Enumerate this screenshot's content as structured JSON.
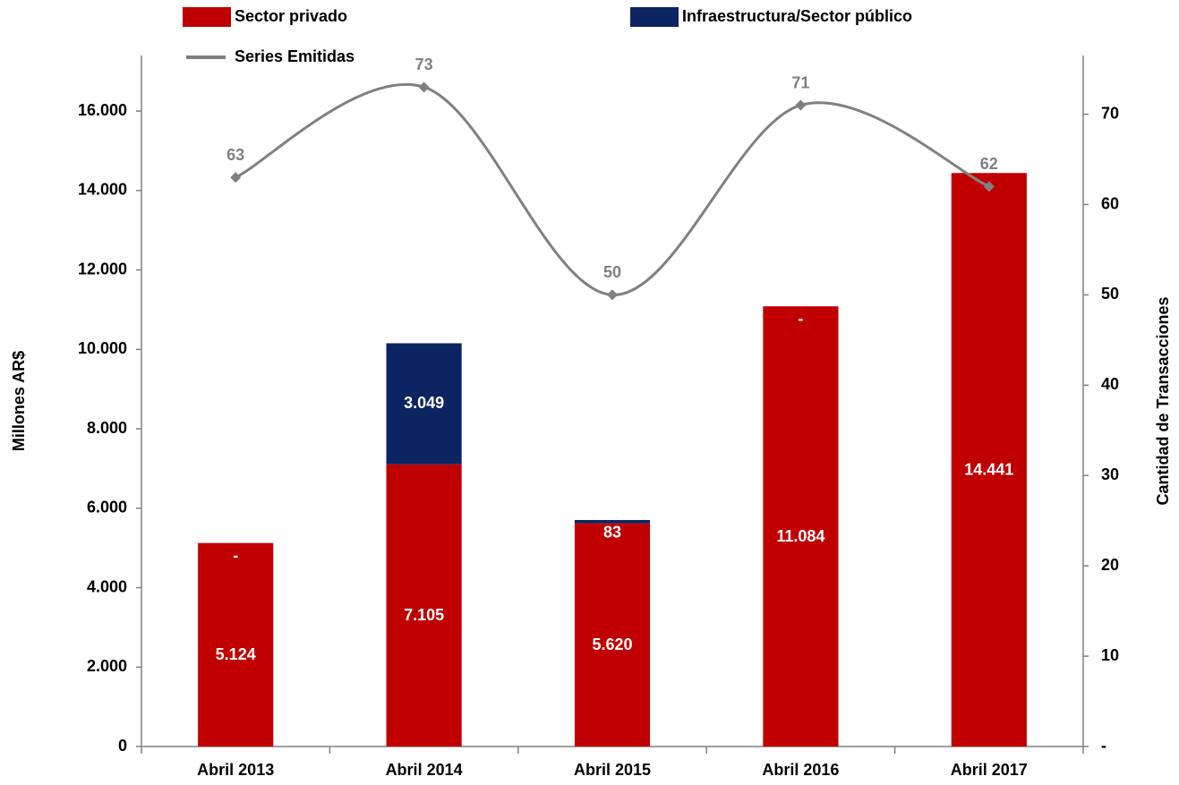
{
  "chart_data": {
    "type": "bar",
    "categories": [
      "Abril 2013",
      "Abril 2014",
      "Abril 2015",
      "Abril 2016",
      "Abril 2017"
    ],
    "series": [
      {
        "name": "Sector privado",
        "color": "#c00000",
        "values": [
          5124,
          7105,
          5620,
          11084,
          14441
        ],
        "value_labels": [
          "5.124",
          "7.105",
          "5.620",
          "11.084",
          "14.441"
        ]
      },
      {
        "name": "Infraestructura/Sector público",
        "color": "#0c2461",
        "values": [
          0,
          3049,
          83,
          0,
          0
        ],
        "value_labels": [
          "-",
          "3.049",
          "83",
          "-",
          "-"
        ]
      },
      {
        "name": "Series Emitidas",
        "type": "line",
        "axis": "y2",
        "color": "#808080",
        "values": [
          63,
          73,
          50,
          71,
          62
        ]
      }
    ],
    "stacked": true,
    "y_label": "Millones AR$",
    "y2_label": "Cantidad de Transacciones",
    "ylim": [
      0,
      17400
    ],
    "yticks": [
      0,
      {
        "value": 2000,
        "label": "2.000"
      },
      {
        "value": 4000,
        "label": "4.000"
      },
      {
        "value": 6000,
        "label": "6.000"
      },
      {
        "value": 8000,
        "label": "8.000"
      },
      {
        "value": 10000,
        "label": "10.000"
      },
      {
        "value": 12000,
        "label": "12.000"
      },
      {
        "value": 14000,
        "label": "14.000"
      },
      {
        "value": 16000,
        "label": "16.000"
      }
    ],
    "y2lim": [
      0,
      76.5
    ],
    "y2ticks": [
      {
        "value": 0,
        "label": "-"
      },
      10,
      20,
      30,
      40,
      50,
      60,
      70
    ],
    "grid": false
  }
}
